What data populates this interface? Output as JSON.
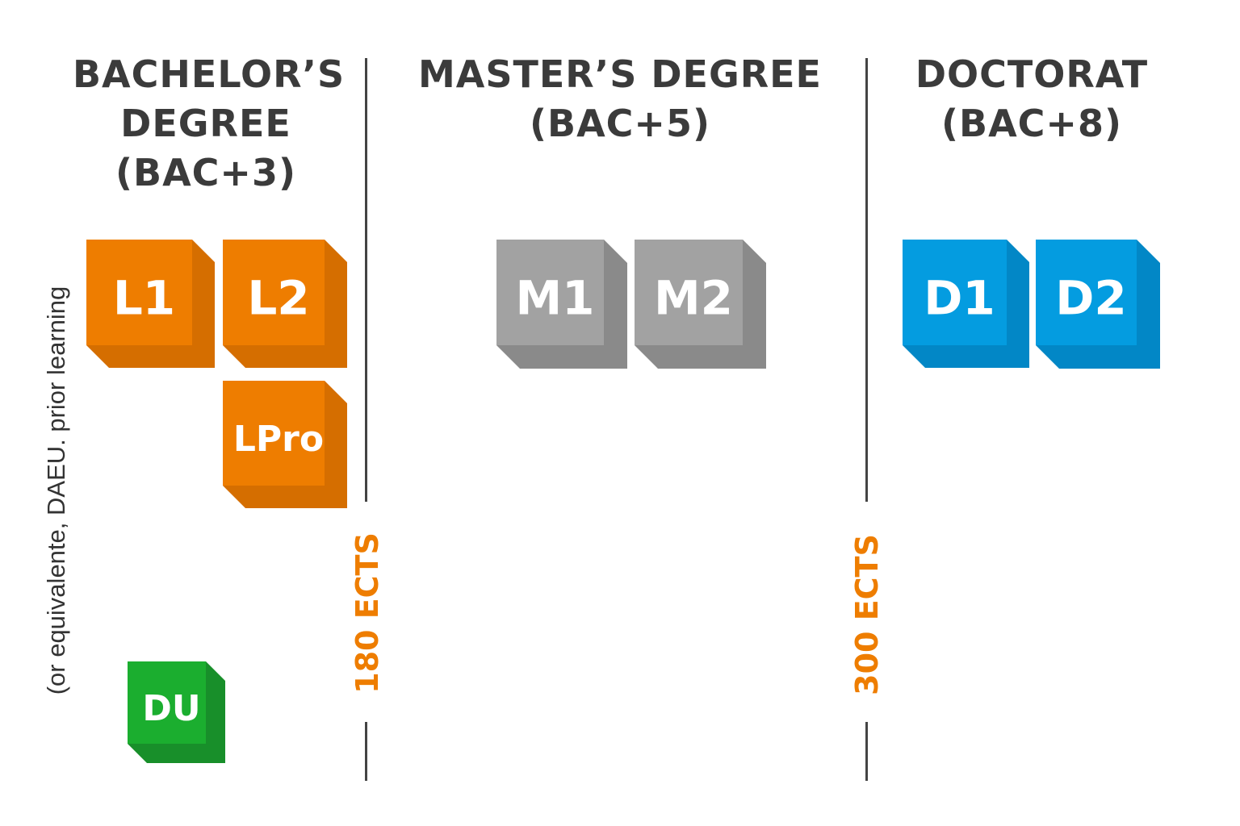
{
  "columns": [
    {
      "title_lines": [
        "BACHELOR’S",
        "DEGREE",
        "(BAC+3)"
      ]
    },
    {
      "title_lines": [
        "MASTER’S DEGREE",
        "(BAC+5)"
      ]
    },
    {
      "title_lines": [
        "DOCTORAT",
        "(BAC+8)"
      ]
    }
  ],
  "side_note": "(or equivalente, DAEU. prior learning",
  "dividers": [
    {
      "ects_label": "180 ECTS"
    },
    {
      "ects_label": "300 ECTS"
    }
  ],
  "blocks": [
    {
      "label": "L1",
      "color": "#EE7D00",
      "shade": "#D56E00"
    },
    {
      "label": "L2",
      "color": "#EE7D00",
      "shade": "#D56E00"
    },
    {
      "label": "LPro",
      "color": "#EE7D00",
      "shade": "#D56E00"
    },
    {
      "label": "DU",
      "color": "#1BAE2F",
      "shade": "#188F2A"
    },
    {
      "label": "M1",
      "color": "#A2A2A2",
      "shade": "#8A8A8A"
    },
    {
      "label": "M2",
      "color": "#A2A2A2",
      "shade": "#8A8A8A"
    },
    {
      "label": "D1",
      "color": "#049CE0",
      "shade": "#0287C6"
    },
    {
      "label": "D2",
      "color": "#049CE0",
      "shade": "#0287C6"
    }
  ],
  "colors": {
    "title": "#3b3b3b",
    "ects": "#EE7D00",
    "divider": "#444444"
  }
}
